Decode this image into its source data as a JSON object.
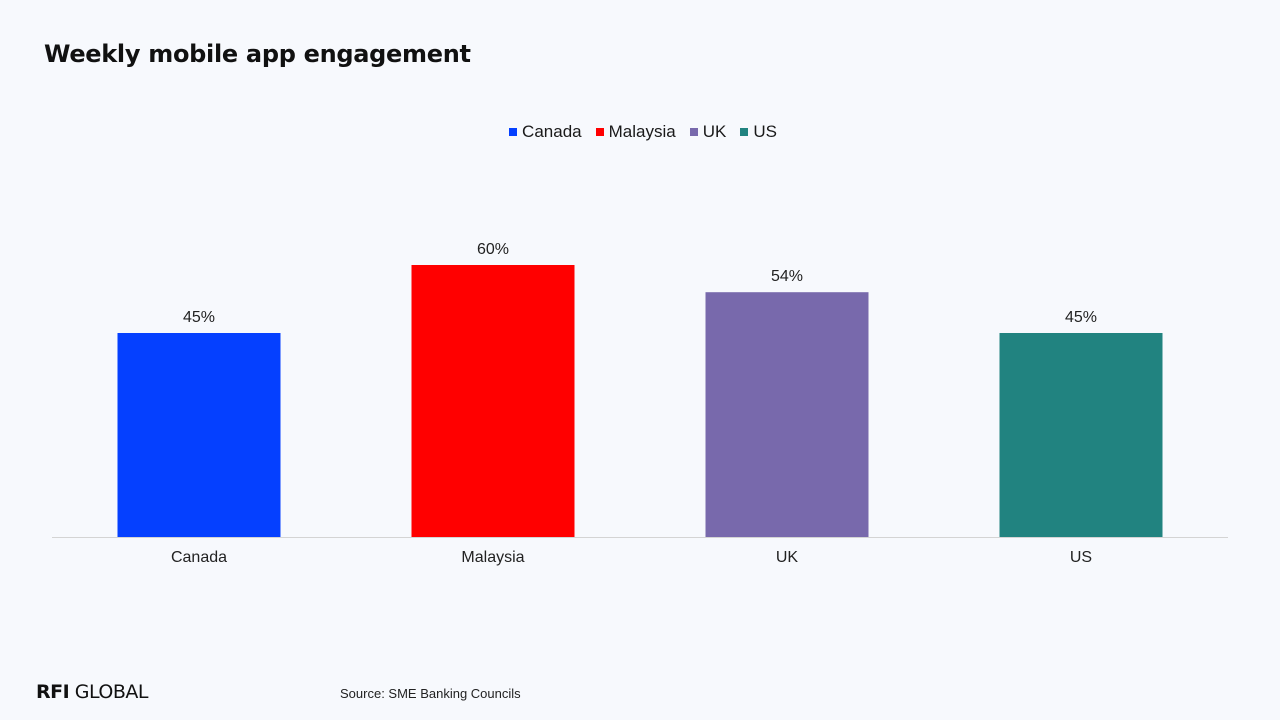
{
  "title": "Weekly mobile app engagement",
  "legend": [
    {
      "label": "Canada",
      "color": "#0540ff"
    },
    {
      "label": "Malaysia",
      "color": "#ff0000"
    },
    {
      "label": "UK",
      "color": "#7869ac"
    },
    {
      "label": "US",
      "color": "#218380"
    }
  ],
  "chart_data": {
    "type": "bar",
    "categories": [
      "Canada",
      "Malaysia",
      "UK",
      "US"
    ],
    "values": [
      45,
      60,
      54,
      45
    ],
    "data_labels": [
      "45%",
      "60%",
      "54%",
      "45%"
    ],
    "colors": [
      "#0540ff",
      "#ff0000",
      "#7869ac",
      "#218380"
    ],
    "ylim": [
      0,
      100
    ],
    "grid": false,
    "legend_position": "top-center"
  },
  "footer": {
    "logo_bold": "RFI",
    "logo_rest": " GLOBAL",
    "source": "Source: SME Banking Councils"
  }
}
